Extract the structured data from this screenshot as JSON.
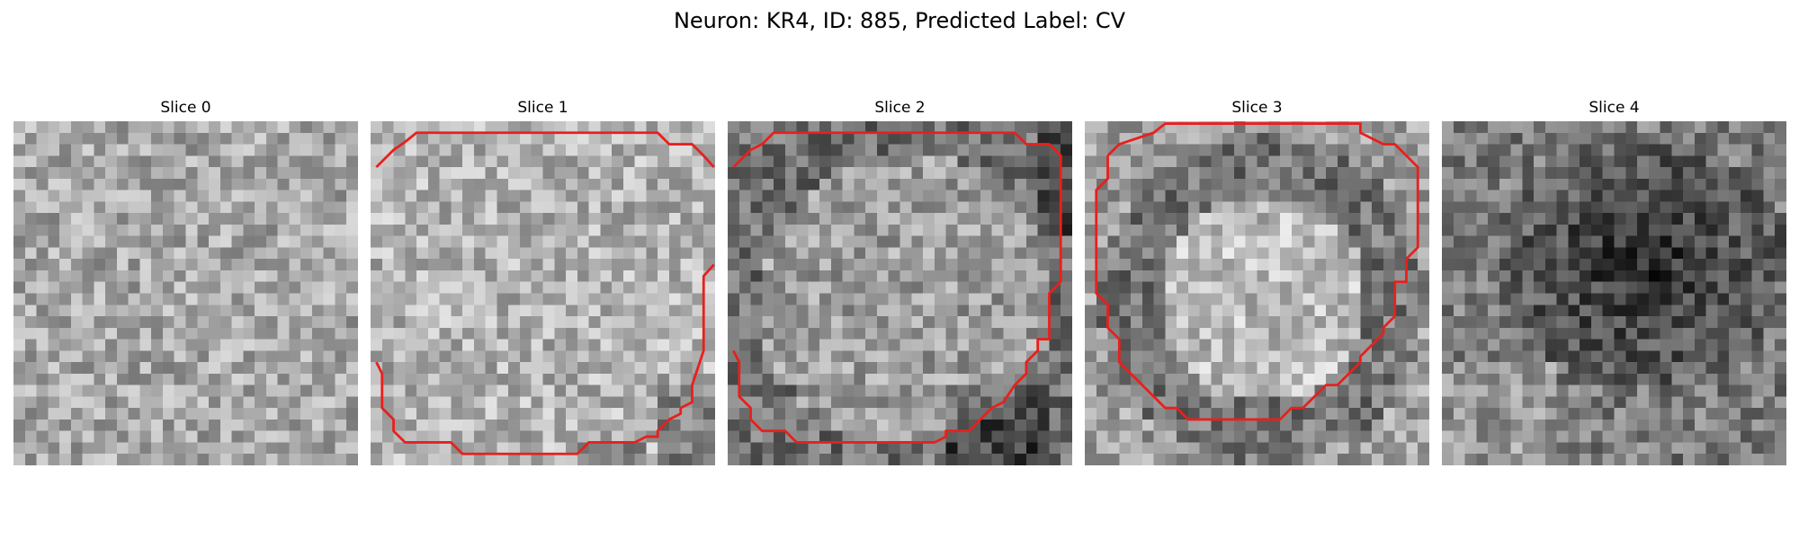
{
  "figure": {
    "title": "Neuron: KR4, ID: 885, Predicted Label: CV"
  },
  "colors": {
    "contour": "#e8201c",
    "background": "#ffffff"
  },
  "grid_size": 30,
  "slices": [
    {
      "title": "Slice 0",
      "brightness": 0.66,
      "darkness_profile": "uniform-noise",
      "contour": []
    },
    {
      "title": "Slice 1",
      "brightness": 0.7,
      "darkness_profile": "light-with-darker-bottom-right",
      "contour": [
        [
          0.5,
          4
        ],
        [
          2,
          2.5
        ],
        [
          3,
          1.8
        ],
        [
          4,
          1
        ],
        [
          25,
          1
        ],
        [
          26,
          2
        ],
        [
          28,
          2
        ],
        [
          29,
          3
        ],
        [
          29.9,
          4
        ]
      ],
      "contour2": [
        [
          29.9,
          12.5
        ],
        [
          29,
          13.5
        ],
        [
          29,
          20
        ],
        [
          28,
          23
        ],
        [
          28,
          24.5
        ],
        [
          27,
          25
        ],
        [
          27,
          25.5
        ],
        [
          26,
          26
        ],
        [
          25,
          27
        ],
        [
          25,
          27.5
        ],
        [
          24,
          27.5
        ],
        [
          23,
          28
        ],
        [
          19,
          28
        ],
        [
          18,
          29
        ],
        [
          8,
          29
        ],
        [
          7,
          28
        ],
        [
          3,
          28
        ],
        [
          2,
          27
        ],
        [
          2,
          26
        ],
        [
          1,
          25
        ],
        [
          1,
          22
        ],
        [
          0.5,
          21
        ]
      ]
    },
    {
      "title": "Slice 2",
      "brightness": 0.62,
      "darkness_profile": "ring-dark-edge",
      "contour": [
        [
          0.5,
          4
        ],
        [
          2,
          2.5
        ],
        [
          3,
          2
        ],
        [
          4,
          1
        ],
        [
          25,
          1
        ],
        [
          26,
          2
        ],
        [
          28,
          2
        ],
        [
          29,
          3
        ],
        [
          29,
          14
        ],
        [
          28,
          15
        ],
        [
          28,
          19
        ],
        [
          27,
          19
        ],
        [
          27,
          20
        ],
        [
          26,
          21
        ],
        [
          26,
          22
        ],
        [
          25,
          23
        ],
        [
          24,
          24.5
        ],
        [
          23,
          25
        ],
        [
          22,
          26
        ],
        [
          21,
          27
        ],
        [
          19,
          27
        ],
        [
          19,
          27.5
        ],
        [
          18,
          28
        ],
        [
          6,
          28
        ],
        [
          5,
          27
        ],
        [
          3,
          27
        ],
        [
          2,
          26
        ],
        [
          2,
          25
        ],
        [
          1,
          24
        ],
        [
          1,
          21
        ],
        [
          0.5,
          20
        ]
      ]
    },
    {
      "title": "Slice 3",
      "brightness": 0.62,
      "darkness_profile": "bright-blob-dark-ring",
      "contour": [
        [
          2,
          3
        ],
        [
          3,
          2
        ],
        [
          6,
          1
        ],
        [
          7,
          0.2
        ],
        [
          24,
          0.2
        ],
        [
          24,
          1
        ],
        [
          26,
          2
        ],
        [
          27,
          2
        ],
        [
          29,
          4
        ],
        [
          29,
          11
        ],
        [
          28,
          12
        ],
        [
          28,
          14
        ],
        [
          27,
          14
        ],
        [
          27,
          17
        ],
        [
          26,
          18
        ],
        [
          26,
          18.5
        ],
        [
          25,
          19.5
        ],
        [
          24,
          20.5
        ],
        [
          24,
          21
        ],
        [
          23,
          22
        ],
        [
          22,
          23
        ],
        [
          21,
          23
        ],
        [
          20,
          24
        ],
        [
          19,
          25
        ],
        [
          18,
          25
        ],
        [
          17,
          26
        ],
        [
          9,
          26
        ],
        [
          8,
          25
        ],
        [
          7,
          25
        ],
        [
          6,
          24
        ],
        [
          5,
          23
        ],
        [
          4,
          22
        ],
        [
          3,
          21
        ],
        [
          3,
          19
        ],
        [
          2,
          18
        ],
        [
          2,
          16
        ],
        [
          1,
          15
        ],
        [
          1,
          6
        ],
        [
          2,
          5
        ],
        [
          2,
          3
        ]
      ]
    },
    {
      "title": "Slice 4",
      "brightness": 0.48,
      "darkness_profile": "dark-center",
      "contour": []
    }
  ]
}
